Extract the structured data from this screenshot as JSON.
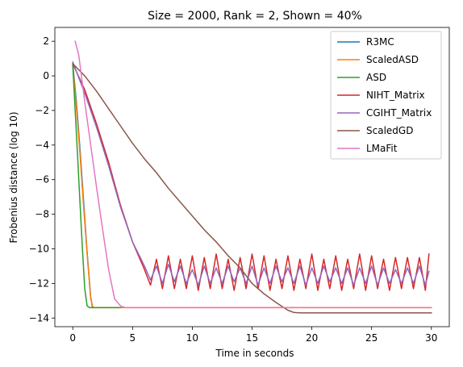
{
  "chart_data": {
    "type": "line",
    "title": "Size = 2000, Rank = 2, Shown = 40%",
    "xlabel": "Time in seconds",
    "ylabel": "Frobenius distance (log 10)",
    "xlim": [
      -1.5,
      31.5
    ],
    "ylim": [
      -14.5,
      2.8
    ],
    "xticks": [
      0,
      5,
      10,
      15,
      20,
      25,
      30
    ],
    "yticks": [
      2,
      0,
      -2,
      -4,
      -6,
      -8,
      -10,
      -12,
      -14
    ],
    "grid": false,
    "legend_position": "top-right",
    "series": [
      {
        "name": "R3MC",
        "color": "#1f77b4",
        "x": [
          0,
          0.3,
          0.6,
          0.9,
          1.2,
          1.5,
          1.65
        ],
        "y": [
          0.7,
          -1.5,
          -4.2,
          -7.2,
          -10.2,
          -12.8,
          -13.4
        ]
      },
      {
        "name": "ScaledASD",
        "color": "#ff7f0e",
        "x": [
          0,
          0.3,
          0.6,
          0.9,
          1.2,
          1.5,
          1.7,
          30
        ],
        "y": [
          0.6,
          -1.8,
          -4.5,
          -7.5,
          -10.3,
          -12.9,
          -13.4,
          -13.4
        ]
      },
      {
        "name": "ASD",
        "color": "#2ca02c",
        "x": [
          0,
          0.2,
          0.4,
          0.6,
          0.8,
          1.0,
          1.2,
          1.4,
          4.0
        ],
        "y": [
          0.6,
          -2.0,
          -4.6,
          -7.3,
          -9.9,
          -12.3,
          -13.3,
          -13.4,
          -13.4
        ]
      },
      {
        "name": "NIHT_Matrix",
        "color": "#d62728",
        "x": [
          0,
          1,
          2,
          3,
          4,
          5,
          6,
          6.5,
          7,
          7.5,
          8,
          8.5,
          9,
          9.5,
          10,
          10.5,
          11,
          11.5,
          12,
          12.5,
          13,
          13.5,
          14,
          14.5,
          15,
          15.5,
          16,
          16.5,
          17,
          17.5,
          18,
          18.5,
          19,
          19.5,
          20,
          20.5,
          21,
          21.5,
          22,
          22.5,
          23,
          23.5,
          24,
          24.5,
          25,
          25.5,
          26,
          26.5,
          27,
          27.5,
          28,
          28.5,
          29,
          29.5,
          29.8
        ],
        "y": [
          0.7,
          -0.8,
          -2.8,
          -5.0,
          -7.5,
          -9.6,
          -11.2,
          -12.1,
          -10.6,
          -12.3,
          -10.4,
          -12.3,
          -10.6,
          -12.3,
          -10.4,
          -12.4,
          -10.5,
          -12.3,
          -10.3,
          -12.3,
          -10.6,
          -12.4,
          -10.5,
          -12.3,
          -10.3,
          -12.3,
          -10.4,
          -12.4,
          -10.6,
          -12.3,
          -10.4,
          -12.4,
          -10.6,
          -12.3,
          -10.3,
          -12.4,
          -10.6,
          -12.3,
          -10.4,
          -12.4,
          -10.6,
          -12.3,
          -10.3,
          -12.4,
          -10.4,
          -12.3,
          -10.6,
          -12.4,
          -10.5,
          -12.3,
          -10.5,
          -12.3,
          -10.5,
          -12.4,
          -10.3
        ]
      },
      {
        "name": "CGIHT_Matrix",
        "color": "#9467bd",
        "x": [
          0,
          1,
          2,
          3,
          4,
          5,
          6,
          6.5,
          7,
          7.5,
          8,
          8.5,
          9,
          9.5,
          10,
          10.5,
          11,
          11.5,
          12,
          12.5,
          13,
          13.5,
          14,
          14.5,
          15,
          15.5,
          16,
          16.5,
          17,
          17.5,
          18,
          18.5,
          19,
          19.5,
          20,
          20.5,
          21,
          21.5,
          22,
          22.5,
          23,
          23.5,
          24,
          24.5,
          25,
          25.5,
          26,
          26.5,
          27,
          27.5,
          28,
          28.5,
          29,
          29.5,
          29.8
        ],
        "y": [
          0.8,
          -1.0,
          -3.0,
          -5.2,
          -7.6,
          -9.6,
          -11.0,
          -11.8,
          -11.0,
          -12.0,
          -10.9,
          -11.9,
          -11.0,
          -12.0,
          -11.2,
          -12.1,
          -11.0,
          -12.0,
          -11.1,
          -12.0,
          -11.0,
          -11.9,
          -11.1,
          -12.0,
          -11.0,
          -12.1,
          -11.1,
          -12.0,
          -11.0,
          -11.9,
          -11.1,
          -12.0,
          -11.0,
          -12.1,
          -11.1,
          -12.0,
          -11.0,
          -11.9,
          -11.1,
          -12.0,
          -11.1,
          -12.1,
          -11.1,
          -12.0,
          -11.0,
          -12.1,
          -11.1,
          -12.0,
          -11.2,
          -12.0,
          -11.1,
          -12.0,
          -11.0,
          -12.1,
          -11.3
        ]
      },
      {
        "name": "ScaledGD",
        "color": "#8c564b",
        "x": [
          0,
          1,
          2,
          3,
          4,
          5,
          6,
          7,
          8,
          9,
          10,
          11,
          12,
          13,
          14,
          15,
          16,
          17,
          18,
          18.5,
          19,
          20,
          22,
          25,
          28,
          30
        ],
        "y": [
          0.7,
          0.0,
          -0.9,
          -1.9,
          -2.9,
          -3.9,
          -4.8,
          -5.6,
          -6.5,
          -7.3,
          -8.1,
          -8.9,
          -9.6,
          -10.4,
          -11.1,
          -12.0,
          -12.6,
          -13.1,
          -13.55,
          -13.68,
          -13.7,
          -13.7,
          -13.7,
          -13.7,
          -13.7,
          -13.7
        ]
      },
      {
        "name": "LMaFit",
        "color": "#e377c2",
        "x": [
          0.2,
          0.5,
          1.0,
          1.5,
          2.0,
          2.5,
          3.0,
          3.5,
          4.0,
          4.4,
          5,
          10,
          15,
          20,
          25,
          30
        ],
        "y": [
          2.0,
          1.2,
          -1.5,
          -4.0,
          -6.5,
          -8.9,
          -11.2,
          -12.9,
          -13.3,
          -13.4,
          -13.4,
          -13.4,
          -13.4,
          -13.4,
          -13.4,
          -13.4
        ]
      }
    ]
  }
}
